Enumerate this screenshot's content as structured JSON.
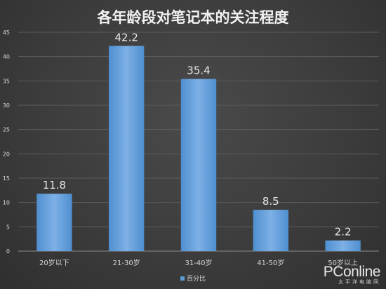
{
  "chart_data": {
    "type": "bar",
    "title": "各年龄段对笔记本的关注程度",
    "categories": [
      "20岁以下",
      "21-30岁",
      "31-40岁",
      "41-50岁",
      "50岁以上"
    ],
    "series": [
      {
        "name": "百分比",
        "values": [
          11.8,
          42.2,
          35.4,
          8.5,
          2.2
        ]
      }
    ],
    "data_labels": [
      "11.8",
      "42.2",
      "35.4",
      "8.5",
      "2.2"
    ],
    "yticks": [
      0,
      5,
      10,
      15,
      20,
      25,
      30,
      35,
      40,
      45
    ],
    "ylim": [
      0,
      45
    ],
    "grid": true,
    "legend_position": "bottom",
    "colors": {
      "bar": "#5b9bd5",
      "bar_light": "#7fb2e5",
      "grid": "#5c5c5c",
      "text": "#d9d9d9",
      "title": "#f2f2f2"
    }
  },
  "watermark": {
    "main": "PConline",
    "sub": "太平洋电脑网"
  }
}
